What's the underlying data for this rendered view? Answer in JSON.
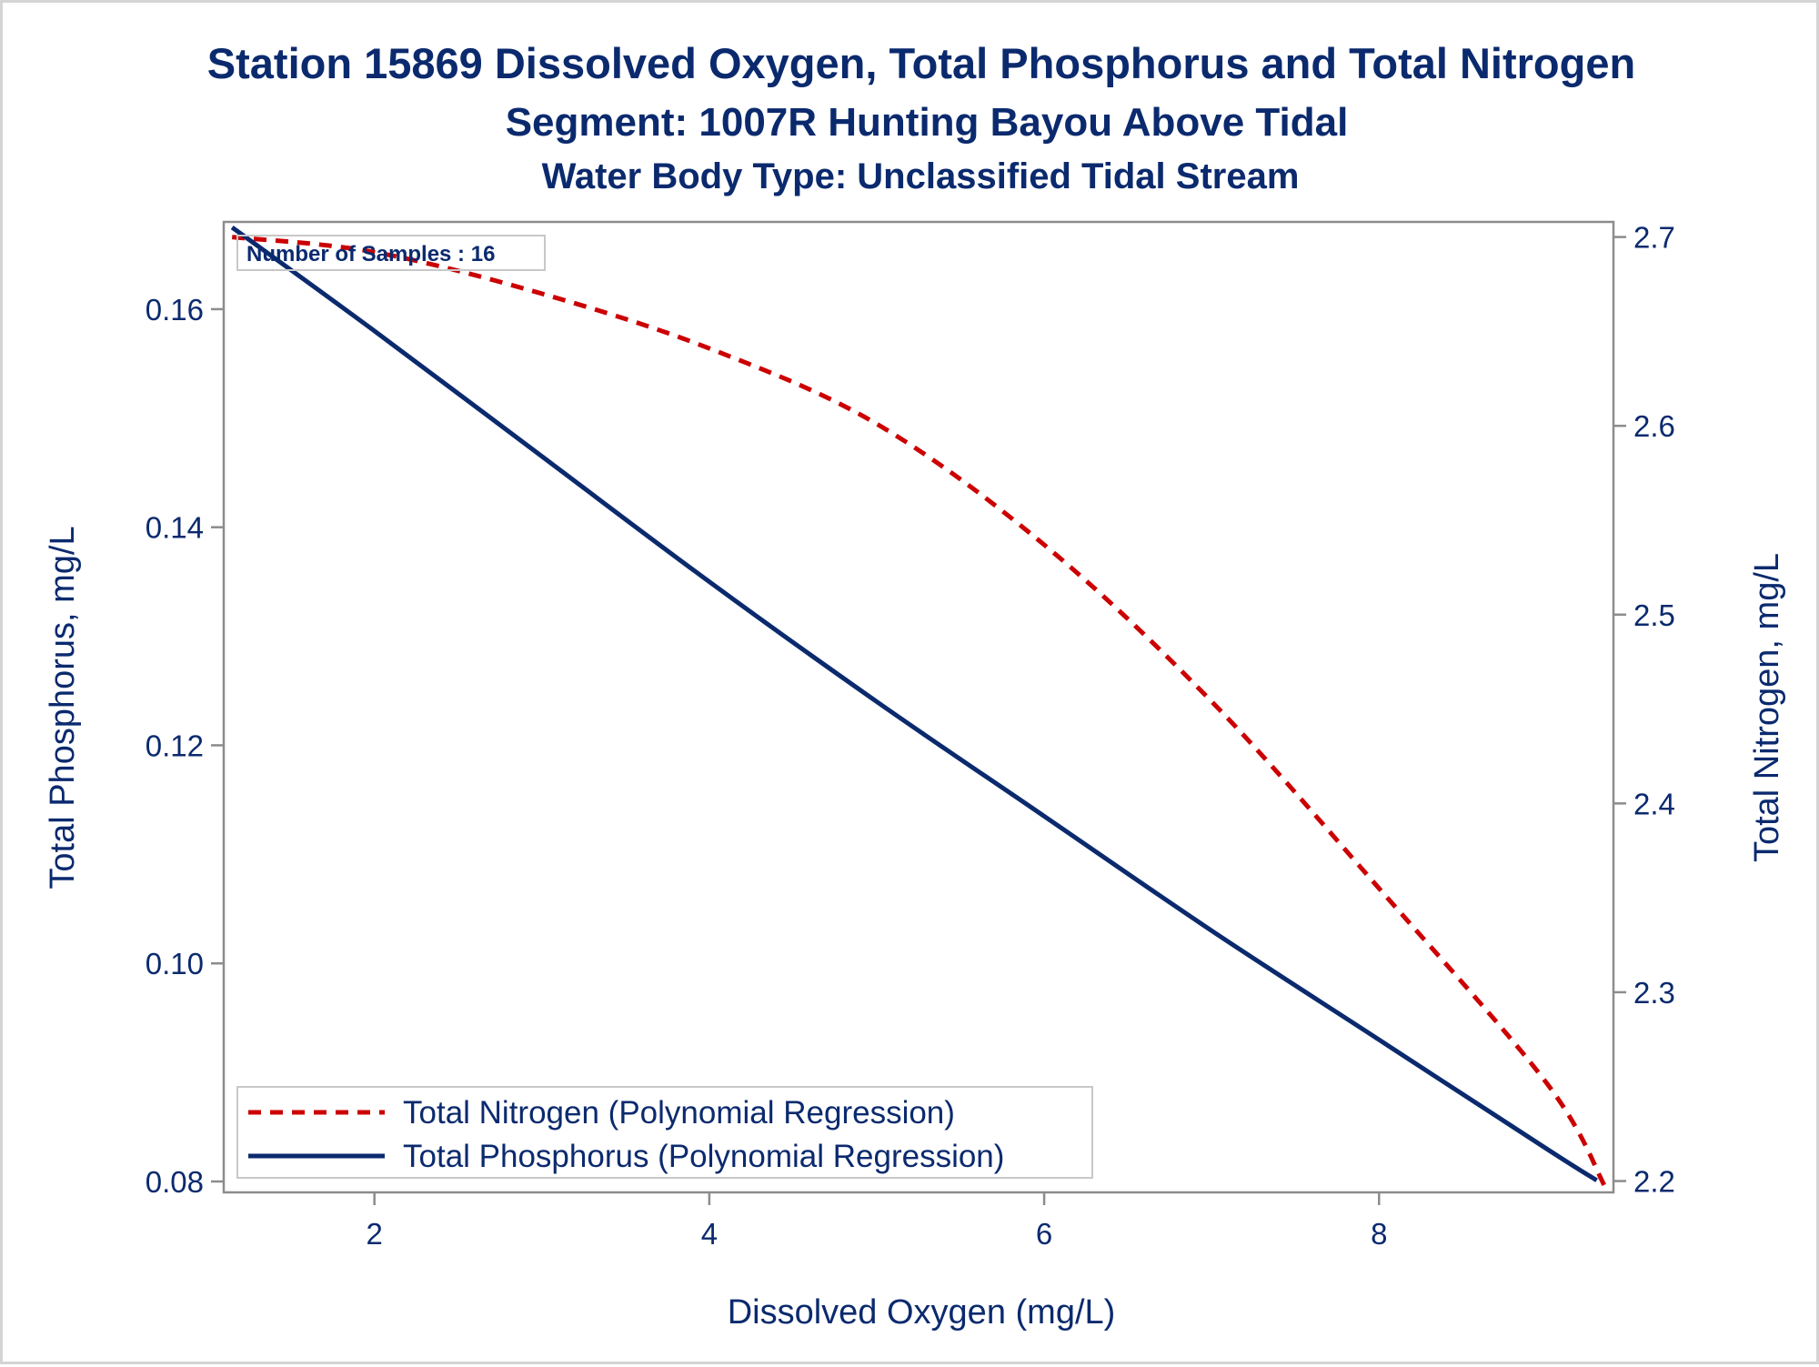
{
  "chart_data": {
    "type": "line",
    "title": "Station 15869  Dissolved Oxygen, Total Phosphorus and Total Nitrogen",
    "subtitle": "Segment: 1007R  Hunting Bayou Above Tidal",
    "subtitle2": "Water Body Type: Unclassified Tidal Stream",
    "xlabel": "Dissolved Oxygen (mg/L)",
    "ylabel_left": "Total Phosphorus, mg/L",
    "ylabel_right": "Total Nitrogen, mg/L",
    "xlim": [
      1.1,
      9.4
    ],
    "ylim_left": [
      0.079,
      0.168
    ],
    "ylim_right": [
      2.194,
      2.708
    ],
    "x_ticks": [
      "2",
      "4",
      "6",
      "8"
    ],
    "x_tick_values": [
      2,
      4,
      6,
      8
    ],
    "y_left_ticks": [
      "0.08",
      "0.10",
      "0.12",
      "0.14",
      "0.16"
    ],
    "y_left_tick_values": [
      0.08,
      0.1,
      0.12,
      0.14,
      0.16
    ],
    "y_right_ticks": [
      "2.2",
      "2.3",
      "2.4",
      "2.5",
      "2.6",
      "2.7"
    ],
    "y_right_tick_values": [
      2.2,
      2.3,
      2.4,
      2.5,
      2.6,
      2.7
    ],
    "annotation": "Number of Samples : 16",
    "legend_position": "bottom-left",
    "series": [
      {
        "name": "Total Nitrogen (Polynomial Regression)",
        "axis": "right",
        "color": "#cc0000",
        "dash": "dashed",
        "x": [
          1.15,
          2.0,
          3.0,
          4.0,
          5.0,
          6.0,
          7.0,
          8.0,
          9.0,
          9.35
        ],
        "y": [
          2.7,
          2.692,
          2.67,
          2.641,
          2.601,
          2.537,
          2.454,
          2.355,
          2.252,
          2.197
        ]
      },
      {
        "name": "Total Phosphorus (Polynomial Regression)",
        "axis": "left",
        "color": "#0b2a6e",
        "dash": "solid",
        "x": [
          1.15,
          2.0,
          3.0,
          4.0,
          5.0,
          6.0,
          7.0,
          8.0,
          9.0,
          9.3
        ],
        "y": [
          0.1675,
          0.158,
          0.1465,
          0.135,
          0.124,
          0.1135,
          0.103,
          0.093,
          0.083,
          0.0801
        ]
      }
    ]
  }
}
